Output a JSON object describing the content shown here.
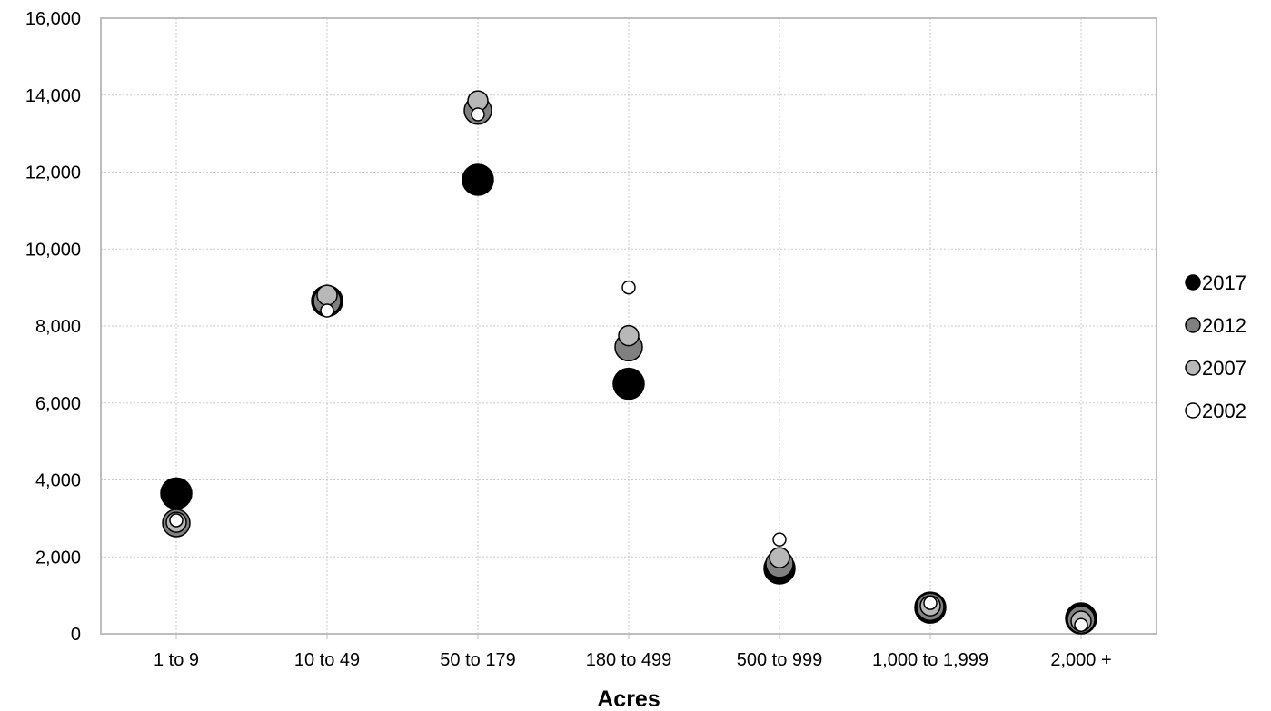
{
  "chart_data": {
    "type": "scatter",
    "title": "",
    "xlabel": "Acres",
    "ylabel": "",
    "categories": [
      "1 to 9",
      "10 to 49",
      "50 to 179",
      "180 to 499",
      "500 to 999",
      "1,000 to 1,999",
      "2,000 +"
    ],
    "ylim": [
      0,
      16000
    ],
    "yticks": [
      0,
      2000,
      4000,
      6000,
      8000,
      10000,
      12000,
      14000,
      16000
    ],
    "ytick_labels": [
      "0",
      "2,000",
      "4,000",
      "6,000",
      "8,000",
      "10,000",
      "12,000",
      "14,000",
      "16,000"
    ],
    "grid": true,
    "legend_position": "right",
    "series": [
      {
        "name": "2002",
        "color": "#ffffff",
        "values": [
          2950,
          8400,
          13500,
          9000,
          2450,
          800,
          230
        ]
      },
      {
        "name": "2007",
        "color": "#b8b8b8",
        "values": [
          2900,
          8800,
          13850,
          7750,
          1980,
          730,
          330
        ]
      },
      {
        "name": "2012",
        "color": "#808080",
        "values": [
          2880,
          8650,
          13600,
          7450,
          1820,
          700,
          370
        ]
      },
      {
        "name": "2017",
        "color": "#000000",
        "values": [
          3650,
          8650,
          11800,
          6500,
          1700,
          680,
          400
        ]
      }
    ],
    "legend_order": [
      "2017",
      "2012",
      "2007",
      "2002"
    ]
  }
}
